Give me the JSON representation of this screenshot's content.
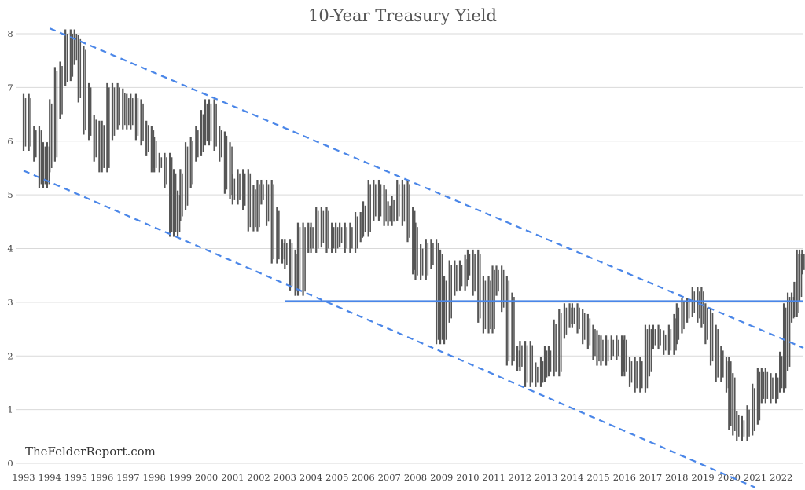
{
  "chart_data": {
    "type": "bar",
    "subtype": "ohlc-high-low-monthly",
    "title": "10-Year Treasury Yield",
    "xlabel": "",
    "ylabel": "",
    "ylim": [
      0,
      8
    ],
    "yticks": [
      "0",
      "1",
      "2",
      "3",
      "4",
      "5",
      "6",
      "7",
      "8"
    ],
    "xlim": [
      1993.0,
      2022.85
    ],
    "xticks": [
      "1993",
      "1994",
      "1995",
      "1996",
      "1997",
      "1998",
      "1999",
      "2000",
      "2001",
      "2002",
      "2003",
      "2004",
      "2005",
      "2006",
      "2007",
      "2008",
      "2009",
      "2010",
      "2011",
      "2012",
      "2013",
      "2014",
      "2015",
      "2016",
      "2017",
      "2018",
      "2019",
      "2020",
      "2021",
      "2022"
    ],
    "grid": "horizontal",
    "legend": "none",
    "watermark": "TheFelderReport.com",
    "bar_color": "#555555",
    "series": [
      {
        "values": [
          [
            1993.0,
            6.7
          ],
          [
            1993.2,
            6.0
          ],
          [
            1993.4,
            6.1
          ],
          [
            1993.6,
            5.8
          ],
          [
            1993.75,
            5.3
          ],
          [
            1993.9,
            5.6
          ],
          [
            1994.0,
            5.8
          ],
          [
            1994.2,
            6.6
          ],
          [
            1994.4,
            7.2
          ],
          [
            1994.6,
            7.3
          ],
          [
            1994.8,
            7.9
          ],
          [
            1994.95,
            7.8
          ],
          [
            1995.1,
            7.6
          ],
          [
            1995.3,
            6.9
          ],
          [
            1995.5,
            6.3
          ],
          [
            1995.7,
            6.2
          ],
          [
            1995.9,
            5.8
          ],
          [
            1996.0,
            5.6
          ],
          [
            1996.2,
            6.2
          ],
          [
            1996.4,
            6.9
          ],
          [
            1996.6,
            6.8
          ],
          [
            1996.8,
            6.4
          ],
          [
            1996.95,
            6.4
          ],
          [
            1997.1,
            6.7
          ],
          [
            1997.3,
            6.6
          ],
          [
            1997.5,
            6.2
          ],
          [
            1997.7,
            6.1
          ],
          [
            1997.9,
            5.9
          ],
          [
            1998.0,
            5.6
          ],
          [
            1998.2,
            5.6
          ],
          [
            1998.4,
            5.6
          ],
          [
            1998.6,
            5.3
          ],
          [
            1998.75,
            4.4
          ],
          [
            1998.9,
            4.7
          ],
          [
            1999.0,
            4.9
          ],
          [
            1999.2,
            5.3
          ],
          [
            1999.4,
            5.8
          ],
          [
            1999.6,
            5.9
          ],
          [
            1999.8,
            6.1
          ],
          [
            1999.95,
            6.4
          ],
          [
            2000.1,
            6.6
          ],
          [
            2000.3,
            6.1
          ],
          [
            2000.5,
            6.0
          ],
          [
            2000.7,
            5.8
          ],
          [
            2000.9,
            5.2
          ],
          [
            2001.0,
            5.1
          ],
          [
            2001.2,
            5.0
          ],
          [
            2001.4,
            5.3
          ],
          [
            2001.6,
            4.9
          ],
          [
            2001.8,
            4.5
          ],
          [
            2001.95,
            5.0
          ],
          [
            2002.1,
            5.1
          ],
          [
            2002.3,
            5.1
          ],
          [
            2002.5,
            4.6
          ],
          [
            2002.7,
            3.9
          ],
          [
            2002.9,
            4.0
          ],
          [
            2003.0,
            4.0
          ],
          [
            2003.2,
            3.8
          ],
          [
            2003.4,
            3.4
          ],
          [
            2003.5,
            3.3
          ],
          [
            2003.7,
            4.3
          ],
          [
            2003.9,
            4.3
          ],
          [
            2004.0,
            4.1
          ],
          [
            2004.2,
            4.2
          ],
          [
            2004.4,
            4.6
          ],
          [
            2004.6,
            4.3
          ],
          [
            2004.8,
            4.1
          ],
          [
            2004.95,
            4.2
          ],
          [
            2005.1,
            4.3
          ],
          [
            2005.3,
            4.2
          ],
          [
            2005.5,
            4.1
          ],
          [
            2005.7,
            4.3
          ],
          [
            2005.9,
            4.5
          ],
          [
            2006.0,
            4.4
          ],
          [
            2006.2,
            4.7
          ],
          [
            2006.4,
            5.1
          ],
          [
            2006.6,
            5.0
          ],
          [
            2006.8,
            4.7
          ],
          [
            2006.95,
            4.6
          ],
          [
            2007.1,
            4.7
          ],
          [
            2007.3,
            4.8
          ],
          [
            2007.5,
            5.1
          ],
          [
            2007.7,
            4.6
          ],
          [
            2007.9,
            4.3
          ],
          [
            2008.0,
            3.7
          ],
          [
            2008.2,
            3.6
          ],
          [
            2008.4,
            3.9
          ],
          [
            2008.6,
            4.0
          ],
          [
            2008.8,
            3.8
          ],
          [
            2008.95,
            2.4
          ],
          [
            2009.1,
            2.8
          ],
          [
            2009.3,
            3.3
          ],
          [
            2009.5,
            3.6
          ],
          [
            2009.7,
            3.4
          ],
          [
            2009.9,
            3.6
          ],
          [
            2010.0,
            3.7
          ],
          [
            2010.2,
            3.8
          ],
          [
            2010.4,
            3.3
          ],
          [
            2010.6,
            2.8
          ],
          [
            2010.8,
            2.6
          ],
          [
            2010.95,
            3.3
          ],
          [
            2011.1,
            3.5
          ],
          [
            2011.3,
            3.3
          ],
          [
            2011.5,
            3.0
          ],
          [
            2011.7,
            2.0
          ],
          [
            2011.9,
            2.0
          ],
          [
            2012.0,
            1.9
          ],
          [
            2012.2,
            2.1
          ],
          [
            2012.4,
            1.6
          ],
          [
            2012.6,
            1.6
          ],
          [
            2012.8,
            1.7
          ],
          [
            2012.95,
            1.8
          ],
          [
            2013.1,
            2.0
          ],
          [
            2013.3,
            1.8
          ],
          [
            2013.5,
            2.5
          ],
          [
            2013.7,
            2.7
          ],
          [
            2013.9,
            2.8
          ],
          [
            2014.0,
            2.8
          ],
          [
            2014.2,
            2.7
          ],
          [
            2014.4,
            2.6
          ],
          [
            2014.6,
            2.4
          ],
          [
            2014.8,
            2.3
          ],
          [
            2014.95,
            2.1
          ],
          [
            2015.1,
            2.0
          ],
          [
            2015.3,
            2.2
          ],
          [
            2015.5,
            2.2
          ],
          [
            2015.7,
            2.1
          ],
          [
            2015.9,
            2.2
          ],
          [
            2016.0,
            1.8
          ],
          [
            2016.2,
            1.8
          ],
          [
            2016.4,
            1.6
          ],
          [
            2016.6,
            1.5
          ],
          [
            2016.8,
            1.8
          ],
          [
            2016.95,
            2.4
          ],
          [
            2017.1,
            2.4
          ],
          [
            2017.3,
            2.3
          ],
          [
            2017.5,
            2.3
          ],
          [
            2017.7,
            2.2
          ],
          [
            2017.9,
            2.4
          ],
          [
            2018.0,
            2.6
          ],
          [
            2018.2,
            2.8
          ],
          [
            2018.4,
            2.9
          ],
          [
            2018.6,
            2.9
          ],
          [
            2018.8,
            3.1
          ],
          [
            2018.95,
            2.8
          ],
          [
            2019.1,
            2.7
          ],
          [
            2019.3,
            2.4
          ],
          [
            2019.5,
            2.0
          ],
          [
            2019.7,
            1.7
          ],
          [
            2019.9,
            1.8
          ],
          [
            2020.0,
            1.5
          ],
          [
            2020.15,
            0.8
          ],
          [
            2020.3,
            0.7
          ],
          [
            2020.5,
            0.6
          ],
          [
            2020.7,
            0.7
          ],
          [
            2020.9,
            0.9
          ],
          [
            2021.1,
            1.3
          ],
          [
            2021.25,
            1.6
          ],
          [
            2021.4,
            1.5
          ],
          [
            2021.6,
            1.3
          ],
          [
            2021.8,
            1.5
          ],
          [
            2021.95,
            1.5
          ],
          [
            2022.1,
            1.9
          ],
          [
            2022.25,
            2.8
          ],
          [
            2022.4,
            3.0
          ],
          [
            2022.5,
            2.9
          ],
          [
            2022.6,
            3.2
          ],
          [
            2022.7,
            3.8
          ],
          [
            2022.8,
            3.7
          ]
        ]
      }
    ],
    "annotations": [
      {
        "type": "dashed-trendline",
        "from": [
          1994.0,
          8.1
        ],
        "to": [
          2022.85,
          2.15
        ],
        "color": "#4a86e8"
      },
      {
        "type": "dashed-trendline",
        "from": [
          1993.0,
          5.45
        ],
        "to": [
          2021.0,
          -0.45
        ],
        "color": "#4a86e8"
      },
      {
        "type": "horizontal-line",
        "value": 3.02,
        "from_x": 2003.0,
        "to_x": 2022.85,
        "color": "#4a86e8"
      }
    ]
  }
}
